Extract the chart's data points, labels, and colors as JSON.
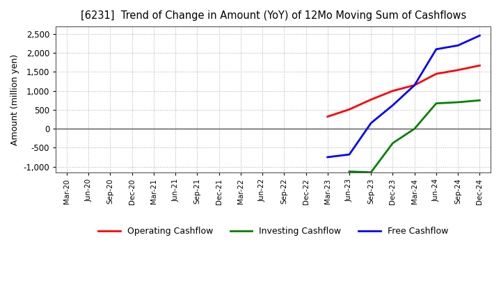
{
  "title": "[6231]  Trend of Change in Amount (YoY) of 12Mo Moving Sum of Cashflows",
  "ylabel": "Amount (million yen)",
  "background_color": "#ffffff",
  "plot_bg_color": "#ffffff",
  "grid_color": "#aaaaaa",
  "x_labels": [
    "Mar-20",
    "Jun-20",
    "Sep-20",
    "Dec-20",
    "Mar-21",
    "Jun-21",
    "Sep-21",
    "Dec-21",
    "Mar-22",
    "Jun-22",
    "Sep-22",
    "Dec-22",
    "Mar-23",
    "Jun-23",
    "Sep-23",
    "Dec-23",
    "Mar-24",
    "Jun-24",
    "Sep-24",
    "Dec-24"
  ],
  "operating_cashflow": {
    "color": "#ff0000",
    "label": "Operating Cashflow",
    "x_indices": [
      12,
      13,
      14,
      15,
      16,
      17,
      18,
      19
    ],
    "values": [
      320,
      510,
      770,
      1000,
      1150,
      1450,
      1550,
      1670
    ]
  },
  "investing_cashflow": {
    "color": "#008000",
    "label": "Investing Cashflow",
    "x_indices": [
      13,
      14,
      15,
      16,
      17,
      18,
      19
    ],
    "values": [
      -1130,
      -1150,
      -380,
      0,
      670,
      700,
      750
    ]
  },
  "free_cashflow": {
    "color": "#0000ff",
    "label": "Free Cashflow",
    "x_indices": [
      12,
      13,
      14,
      15,
      16,
      17,
      18,
      19
    ],
    "values": [
      -750,
      -680,
      150,
      620,
      1150,
      2100,
      2200,
      2460
    ]
  },
  "ylim": [
    -1150,
    2700
  ],
  "yticks": [
    -1000,
    -500,
    0,
    500,
    1000,
    1500,
    2000,
    2500
  ]
}
